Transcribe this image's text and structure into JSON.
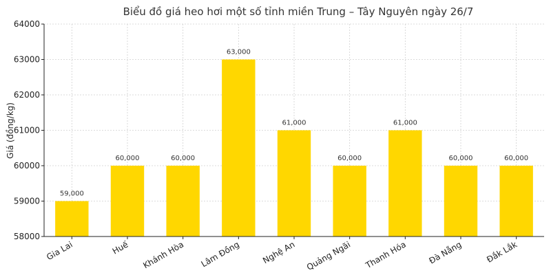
{
  "chart_data": {
    "type": "bar",
    "title": "Biểu đồ giá heo hơi một số tỉnh miền Trung – Tây Nguyên ngày 26/7",
    "xlabel": "",
    "ylabel": "Giá (đồng/kg)",
    "categories": [
      "Gia Lai",
      "Huế",
      "Khánh Hòa",
      "Lâm Đồng",
      "Nghệ An",
      "Quảng Ngãi",
      "Thanh Hóa",
      "Đà Nẵng",
      "Đắk Lắk"
    ],
    "values": [
      59000,
      60000,
      60000,
      63000,
      61000,
      60000,
      61000,
      60000,
      60000
    ],
    "data_labels": [
      "59,000",
      "60,000",
      "60,000",
      "63,000",
      "61,000",
      "60,000",
      "61,000",
      "60,000",
      "60,000"
    ],
    "yticks": [
      58000,
      59000,
      60000,
      61000,
      62000,
      63000,
      64000
    ],
    "ytick_labels": [
      "58000",
      "59000",
      "60000",
      "61000",
      "62000",
      "63000",
      "64000"
    ],
    "ylim": [
      58000,
      64000
    ],
    "grid": true,
    "bar_color": "#FFD700"
  }
}
